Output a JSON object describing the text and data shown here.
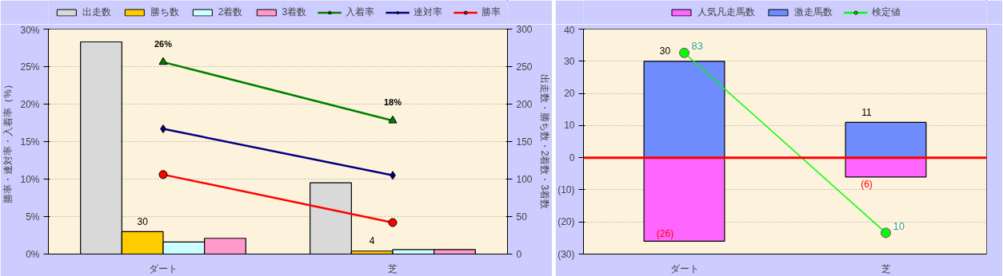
{
  "chart_data": [
    {
      "type": "bar",
      "categories": [
        "ダート",
        "芝"
      ],
      "ylabel": "勝率・連対率・入着率（%）",
      "y2label": "出走数・勝ち数・2着数・3着数",
      "ylim": [
        0,
        30
      ],
      "yticks": [
        {
          "value": 0,
          "label": "0%"
        },
        {
          "value": 5,
          "label": "5%"
        },
        {
          "value": 10,
          "label": "10%"
        },
        {
          "value": 15,
          "label": "15%"
        },
        {
          "value": 20,
          "label": "20%"
        },
        {
          "value": 25,
          "label": "25%"
        },
        {
          "value": 30,
          "label": "30%"
        }
      ],
      "y2lim": [
        0,
        300
      ],
      "y2ticks": [
        0,
        50,
        100,
        150,
        200,
        250,
        300
      ],
      "grid": "y",
      "legend": "top",
      "series": [
        {
          "name": "出走数",
          "axis": "y2",
          "color": "#d9d9d9",
          "values": [
            283,
            95
          ]
        },
        {
          "name": "勝ち数",
          "axis": "y2",
          "color": "#ffcc00",
          "values": [
            30,
            4
          ],
          "value_labels": [
            "30",
            "4"
          ]
        },
        {
          "name": "2着数",
          "axis": "y2",
          "color": "#ccffff",
          "values": [
            16,
            6
          ]
        },
        {
          "name": "3着数",
          "axis": "y2",
          "color": "#ff99cc",
          "values": [
            21,
            6
          ]
        },
        {
          "name": "入着率",
          "type": "line",
          "color": "#008000",
          "marker": "triangle",
          "values": [
            25.6,
            17.8
          ],
          "value_labels": [
            "26%",
            "18%"
          ]
        },
        {
          "name": "連対率",
          "type": "line",
          "color": "#000080",
          "marker": "diamond",
          "values": [
            16.7,
            10.5
          ]
        },
        {
          "name": "勝率",
          "type": "line",
          "color": "#ff0000",
          "marker": "circle",
          "values": [
            10.6,
            4.2
          ]
        }
      ]
    },
    {
      "type": "bar",
      "stacked": true,
      "categories": [
        "ダート",
        "芝"
      ],
      "ylim": [
        -30,
        40
      ],
      "yticks": [
        {
          "value": -30,
          "label": "(30)"
        },
        {
          "value": -20,
          "label": "(20)"
        },
        {
          "value": -10,
          "label": "(10)"
        },
        0,
        10,
        20,
        30,
        40
      ],
      "grid": "y",
      "legend": "top",
      "ref_lines": [
        {
          "axis": "y",
          "value": 0,
          "color": "#ff0000"
        }
      ],
      "series": [
        {
          "name": "人気凡走馬数",
          "color": "#ff66ff",
          "values": [
            -26,
            -6
          ],
          "value_labels": [
            "(26)",
            "(6)"
          ]
        },
        {
          "name": "激走馬数",
          "color": "#6f8cff",
          "values": [
            30,
            11
          ],
          "value_labels": [
            "30",
            "11"
          ]
        },
        {
          "name": "検定値",
          "type": "line",
          "color": "#00ff00",
          "marker": "circle",
          "values": [
            32.6,
            -23.4
          ]
        }
      ],
      "annotations": [
        {
          "text": "83",
          "x": "ダート",
          "y": 32.6
        },
        {
          "text": "10",
          "x": "芝",
          "y": -23.4
        }
      ]
    }
  ]
}
